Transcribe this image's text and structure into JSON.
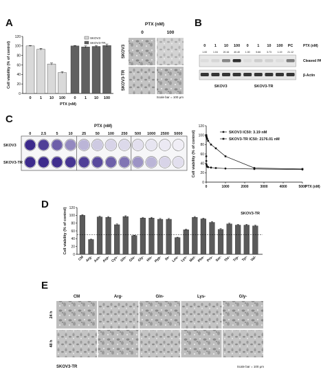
{
  "panels": {
    "A": {
      "letter": "A",
      "chart_data": {
        "type": "bar",
        "ylabel": "Cell viability (% of control)",
        "xlabel": "PTX (nM)",
        "ylim": [
          0,
          120
        ],
        "yticks": [
          0,
          20,
          40,
          60,
          80,
          100,
          120
        ],
        "categories": [
          "0",
          "1",
          "10",
          "100"
        ],
        "series": [
          {
            "name": "SKOV3",
            "values": [
              100,
              93,
              62,
              44
            ],
            "errors": [
              1,
              2,
              2,
              2
            ],
            "color": "#d9d9d9"
          },
          {
            "name": "SKOV3-TR",
            "values": [
              100,
              98,
              99,
              101
            ],
            "errors": [
              1,
              2,
              2,
              3
            ],
            "color": "#606060"
          }
        ],
        "legend": "top-right"
      },
      "micro": {
        "title": "PTX (nM)",
        "cols": [
          "0",
          "100"
        ],
        "rows": [
          "SKOV3",
          "SKOV3-TR"
        ],
        "scale": "Scale bar = 100 μm"
      }
    },
    "B": {
      "letter": "B",
      "lanes": [
        "0",
        "1",
        "10",
        "100",
        "0",
        "1",
        "10",
        "100",
        "PC"
      ],
      "quant": [
        "1.00",
        "1.04",
        "20.16",
        "40.40",
        "1.00",
        "5.66",
        "3.73",
        "1.19",
        "21.12"
      ],
      "ptx_label": "PTX (nM)",
      "rows": [
        "Cleaved PARP",
        "β-Actin"
      ],
      "groups": [
        "SKOV3",
        "SKOV3-TR"
      ],
      "parp_intensity": [
        0.05,
        0.08,
        0.45,
        0.85,
        0.05,
        0.12,
        0.1,
        0.05,
        0.5
      ]
    },
    "C": {
      "letter": "C",
      "plate": {
        "title": "PTX (nM)",
        "concs": [
          "0",
          "2.5",
          "5",
          "10",
          "25",
          "50",
          "100",
          "250",
          "500",
          "1000",
          "2500",
          "5000"
        ],
        "rows": [
          "SKOV3",
          "SKOV3-TR"
        ],
        "stain_skov3": [
          1.0,
          0.9,
          0.75,
          0.55,
          0.35,
          0.25,
          0.2,
          0.18,
          0.15,
          0.12,
          0.1,
          0.08
        ],
        "stain_tr": [
          1.0,
          1.0,
          0.98,
          0.95,
          0.9,
          0.85,
          0.75,
          0.65,
          0.5,
          0.35,
          0.2,
          0.15
        ]
      },
      "chart_data": {
        "type": "scatter",
        "ylabel": "Cell viability (% of control)",
        "xlabel": "PTX (nM)",
        "xlim": [
          0,
          5000
        ],
        "ylim": [
          0,
          120
        ],
        "xticks": [
          0,
          1000,
          2000,
          3000,
          4000,
          5000
        ],
        "yticks": [
          0,
          20,
          40,
          60,
          80,
          100,
          120
        ],
        "series": [
          {
            "name": "SKOV3 IC50: 3.19 nM",
            "x": [
              0,
              2.5,
              5,
              10,
              25,
              50,
              100,
              250,
              500,
              1000,
              2500,
              5000
            ],
            "y": [
              100,
              55,
              45,
              38,
              35,
              33,
              32,
              31,
              30,
              29,
              28,
              27
            ]
          },
          {
            "name": "SKOV3-TR IC50: 2176.01 nM",
            "x": [
              0,
              2.5,
              5,
              10,
              25,
              50,
              100,
              250,
              500,
              1000,
              2500,
              5000
            ],
            "y": [
              100,
              99,
              98,
              97,
              95,
              92,
              88,
              80,
              72,
              55,
              30,
              28
            ]
          }
        ]
      }
    },
    "D": {
      "letter": "D",
      "chart_data": {
        "type": "bar",
        "title": "SKOV3-TR",
        "ylabel": "Cell viability (% of control)",
        "ylim": [
          0,
          120
        ],
        "yticks": [
          0,
          20,
          40,
          60,
          80,
          100,
          120
        ],
        "categories": [
          "CM",
          "Arg-",
          "Asn-",
          "Asp-",
          "Cys-",
          "Gln-",
          "Glu-",
          "Gly-",
          "His-",
          "Hyp-",
          "Ile-",
          "Leu-",
          "Lys-",
          "Met-",
          "Phe-",
          "Pro-",
          "Ser-",
          "Thr-",
          "Trp-",
          "Tyr-",
          "Val-"
        ],
        "values": [
          100,
          38,
          96,
          95,
          76,
          97,
          48,
          93,
          93,
          90,
          90,
          43,
          63,
          95,
          91,
          82,
          64,
          78,
          75,
          75,
          73
        ],
        "errors": [
          2,
          1,
          2,
          2,
          2,
          2,
          1,
          2,
          2,
          2,
          2,
          1,
          2,
          2,
          2,
          2,
          2,
          2,
          2,
          2,
          2
        ],
        "reference_line": 50
      }
    },
    "E": {
      "letter": "E",
      "cols": [
        "CM",
        "Arg-",
        "Gln-",
        "Lys-",
        "Gly-"
      ],
      "rows": [
        "24 h",
        "48 h"
      ],
      "cell_line": "SKOV3-TR",
      "scale": "Scale bar = 100 μm"
    }
  }
}
